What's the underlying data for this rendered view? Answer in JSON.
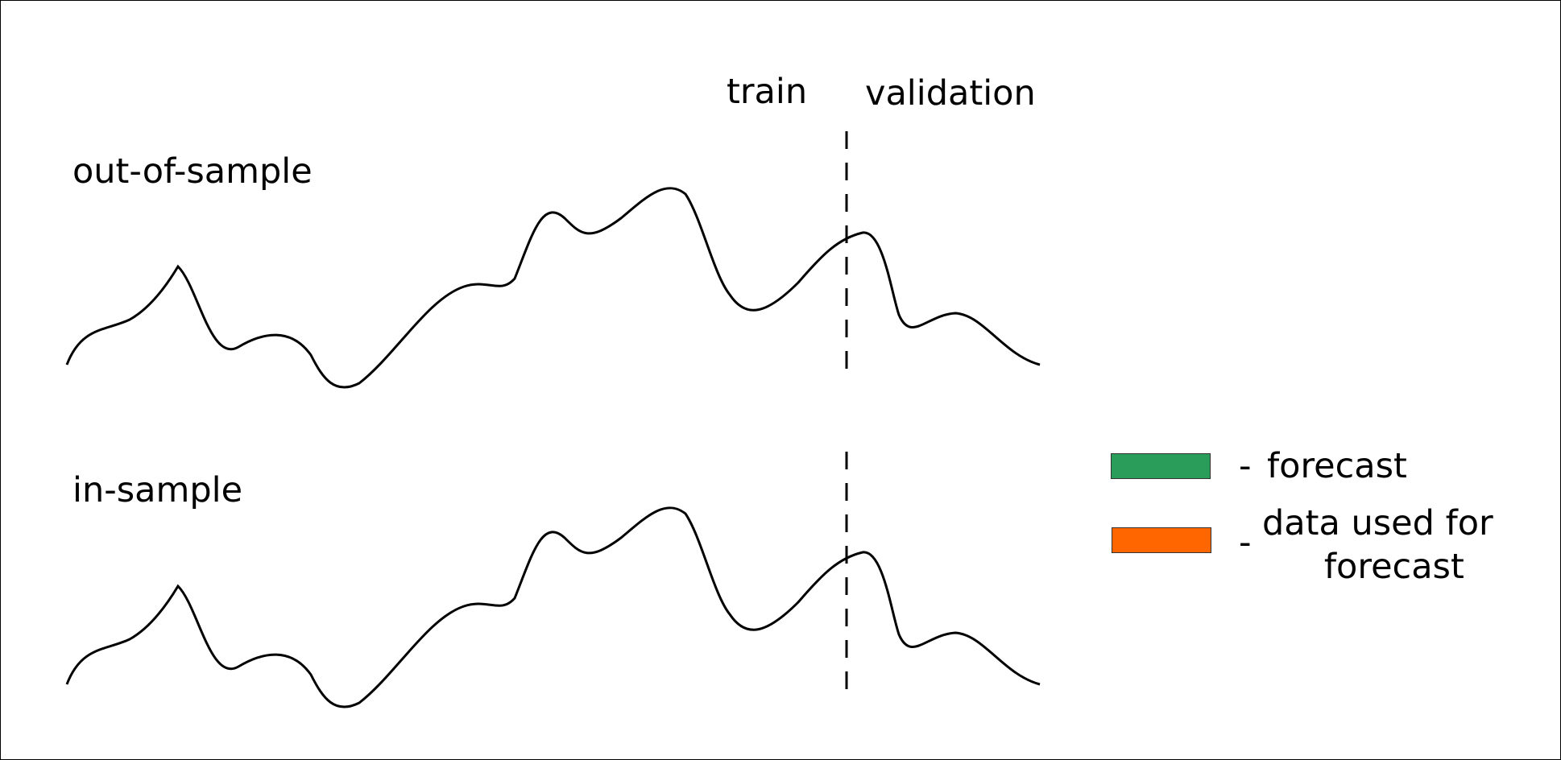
{
  "labels": {
    "train": "train",
    "validation": "validation",
    "out_of_sample": "out-of-sample",
    "in_sample": "in-sample"
  },
  "legend": {
    "items": [
      {
        "dash": "-",
        "label": "forecast",
        "color": "#2a9d5a"
      },
      {
        "dash": "-",
        "label": "data used for\n   forecast",
        "color": "#ff6600"
      }
    ]
  },
  "colors": {
    "line": "#000000",
    "background": "#ffffff"
  }
}
